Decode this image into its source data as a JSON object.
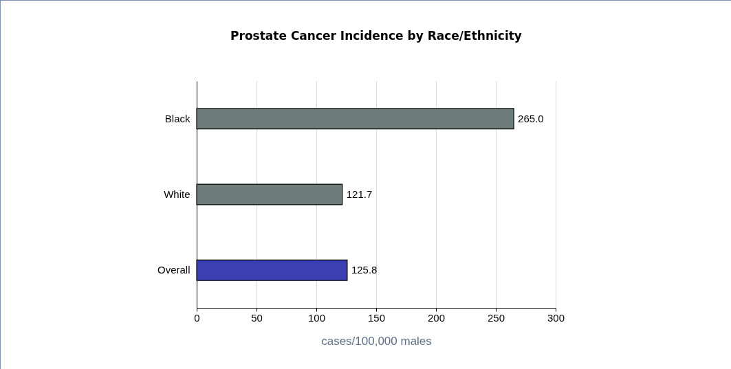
{
  "chart_data": {
    "type": "bar",
    "orientation": "horizontal",
    "title": "Prostate Cancer Incidence by Race/Ethnicity",
    "xlabel": "cases/100,000 males",
    "categories": [
      "Black",
      "White",
      "Overall"
    ],
    "values": [
      265.0,
      121.7,
      125.8
    ],
    "value_labels": [
      "265.0",
      "121.7",
      "125.8"
    ],
    "colors": [
      "#6e7c7c",
      "#6e7c7c",
      "#3a40b4"
    ],
    "xlim": [
      0,
      300
    ],
    "xticks": [
      0,
      50,
      100,
      150,
      200,
      250,
      300
    ],
    "grid": "x"
  }
}
